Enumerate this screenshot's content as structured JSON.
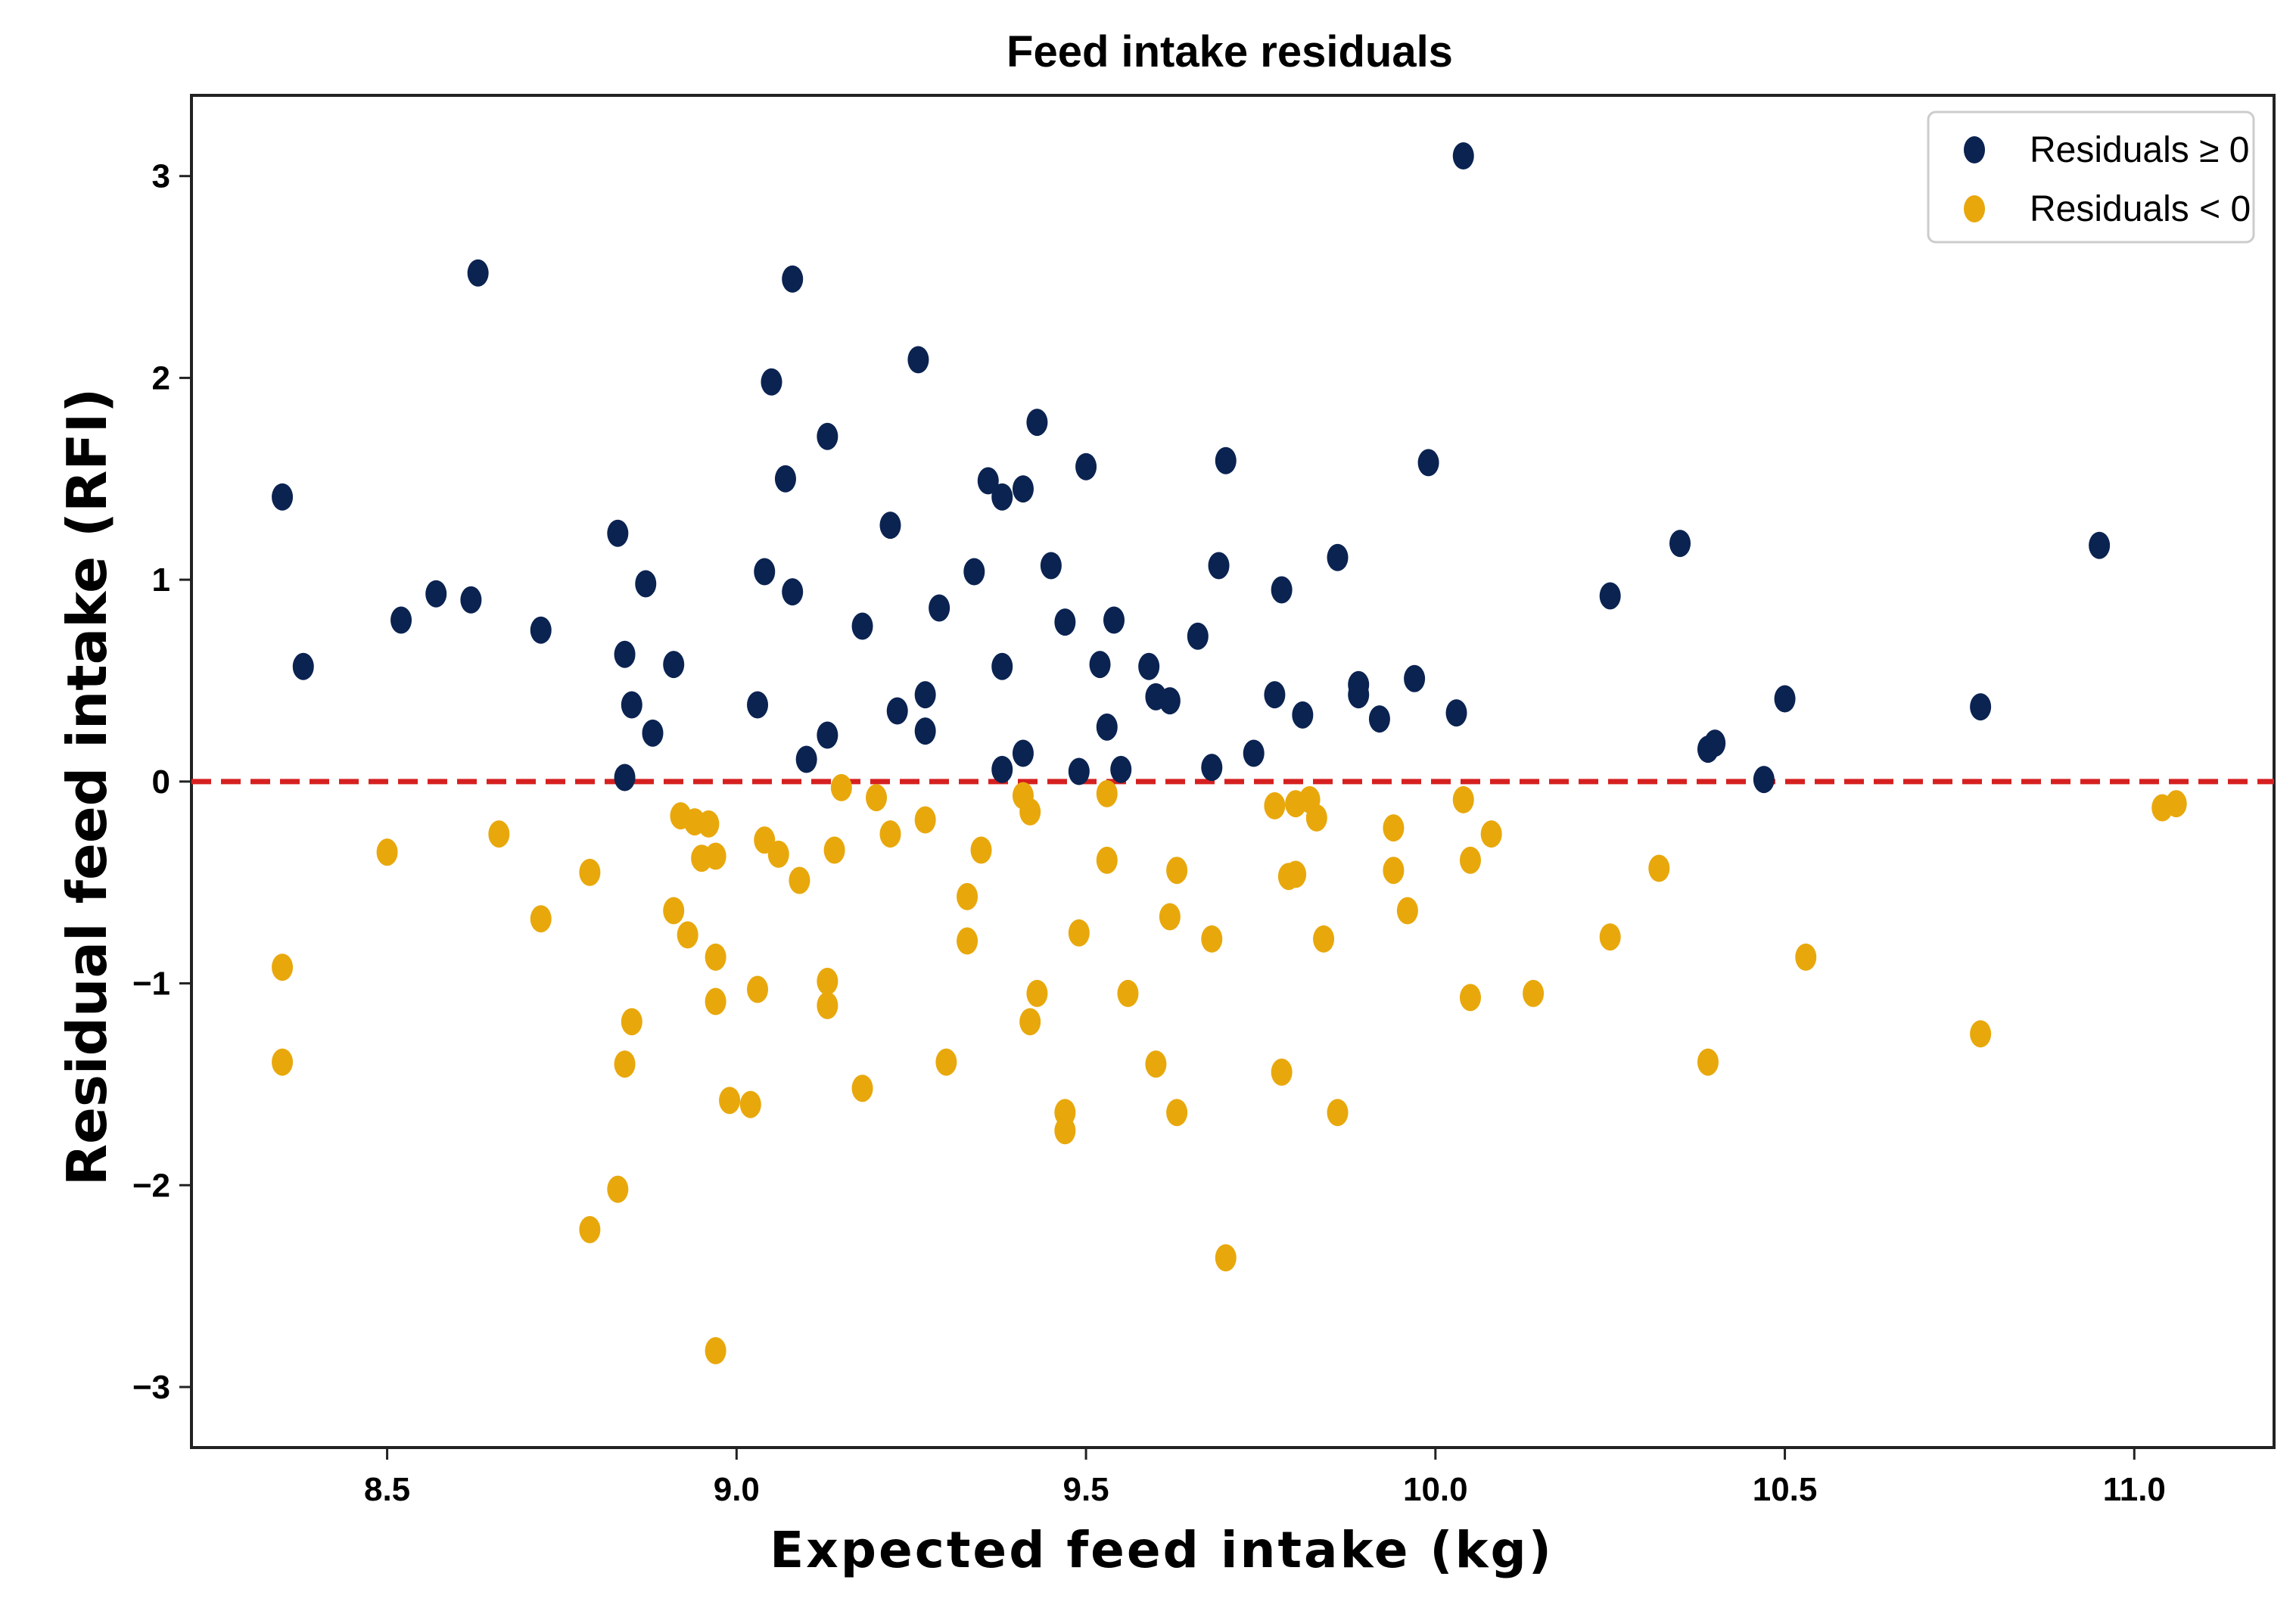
{
  "chart_data": {
    "type": "scatter",
    "title": "Feed intake residuals",
    "xlabel": "Expected feed intake (kg)",
    "ylabel": "Residual feed intake (RFI)",
    "xlim": [
      8.22,
      11.2
    ],
    "ylim": [
      -3.3,
      3.4
    ],
    "xticks": [
      8.5,
      9.0,
      9.5,
      10.0,
      10.5,
      11.0
    ],
    "xtick_labels": [
      "8.5",
      "9.0",
      "9.5",
      "10.0",
      "10.5",
      "11.0"
    ],
    "yticks": [
      -3,
      -2,
      -1,
      0,
      1,
      2,
      3
    ],
    "ytick_labels": [
      "−3",
      "−2",
      "−1",
      "0",
      "1",
      "2",
      "3"
    ],
    "grid": false,
    "legend_position": "top-right",
    "reference_line": {
      "y": 0,
      "style": "dashed",
      "color": "#d62020"
    },
    "series": [
      {
        "name": "Residuals ≥ 0",
        "color": "#0b2351",
        "points": [
          [
            8.35,
            1.41
          ],
          [
            8.38,
            0.57
          ],
          [
            8.52,
            0.8
          ],
          [
            8.57,
            0.93
          ],
          [
            8.62,
            0.9
          ],
          [
            8.63,
            2.52
          ],
          [
            8.72,
            0.75
          ],
          [
            8.83,
            1.23
          ],
          [
            8.84,
            0.63
          ],
          [
            8.85,
            0.38
          ],
          [
            8.84,
            0.02
          ],
          [
            8.87,
            0.98
          ],
          [
            8.88,
            0.24
          ],
          [
            8.91,
            0.58
          ],
          [
            9.03,
            0.38
          ],
          [
            9.04,
            1.04
          ],
          [
            9.05,
            1.98
          ],
          [
            9.07,
            1.5
          ],
          [
            9.08,
            0.94
          ],
          [
            9.08,
            2.49
          ],
          [
            9.1,
            0.11
          ],
          [
            9.13,
            1.71
          ],
          [
            9.13,
            0.23
          ],
          [
            9.18,
            0.77
          ],
          [
            9.22,
            1.27
          ],
          [
            9.23,
            0.35
          ],
          [
            9.26,
            2.09
          ],
          [
            9.27,
            0.25
          ],
          [
            9.27,
            0.43
          ],
          [
            9.29,
            0.86
          ],
          [
            9.34,
            1.04
          ],
          [
            9.36,
            1.49
          ],
          [
            9.38,
            1.41
          ],
          [
            9.38,
            0.57
          ],
          [
            9.38,
            0.06
          ],
          [
            9.41,
            1.45
          ],
          [
            9.41,
            0.14
          ],
          [
            9.43,
            1.78
          ],
          [
            9.45,
            1.07
          ],
          [
            9.47,
            0.79
          ],
          [
            9.49,
            0.05
          ],
          [
            9.5,
            1.56
          ],
          [
            9.52,
            0.58
          ],
          [
            9.53,
            0.27
          ],
          [
            9.54,
            0.8
          ],
          [
            9.55,
            0.06
          ],
          [
            9.59,
            0.57
          ],
          [
            9.6,
            0.42
          ],
          [
            9.62,
            0.4
          ],
          [
            9.66,
            0.72
          ],
          [
            9.68,
            0.07
          ],
          [
            9.69,
            1.07
          ],
          [
            9.7,
            1.59
          ],
          [
            9.74,
            0.14
          ],
          [
            9.77,
            0.43
          ],
          [
            9.78,
            0.95
          ],
          [
            9.81,
            0.33
          ],
          [
            9.86,
            1.11
          ],
          [
            9.89,
            0.48
          ],
          [
            9.89,
            0.43
          ],
          [
            9.92,
            0.31
          ],
          [
            9.97,
            0.51
          ],
          [
            9.99,
            1.58
          ],
          [
            10.03,
            0.34
          ],
          [
            10.04,
            3.1
          ],
          [
            10.25,
            0.92
          ],
          [
            10.35,
            1.18
          ],
          [
            10.39,
            0.16
          ],
          [
            10.4,
            0.19
          ],
          [
            10.47,
            0.01
          ],
          [
            10.5,
            0.41
          ],
          [
            10.78,
            0.37
          ],
          [
            10.95,
            1.17
          ]
        ]
      },
      {
        "name": "Residuals < 0",
        "color": "#e8a80c",
        "points": [
          [
            8.35,
            -0.92
          ],
          [
            8.35,
            -1.39
          ],
          [
            8.5,
            -0.35
          ],
          [
            8.66,
            -0.26
          ],
          [
            8.72,
            -0.68
          ],
          [
            8.79,
            -0.45
          ],
          [
            8.79,
            -2.22
          ],
          [
            8.83,
            -2.02
          ],
          [
            8.84,
            -1.4
          ],
          [
            8.85,
            -1.19
          ],
          [
            8.91,
            -0.64
          ],
          [
            8.92,
            -0.17
          ],
          [
            8.93,
            -0.76
          ],
          [
            8.94,
            -0.2
          ],
          [
            8.95,
            -0.38
          ],
          [
            8.96,
            -0.21
          ],
          [
            8.97,
            -0.37
          ],
          [
            8.97,
            -0.87
          ],
          [
            8.97,
            -1.09
          ],
          [
            8.97,
            -2.82
          ],
          [
            8.99,
            -1.58
          ],
          [
            9.02,
            -1.6
          ],
          [
            9.03,
            -1.03
          ],
          [
            9.04,
            -0.29
          ],
          [
            9.06,
            -0.36
          ],
          [
            9.09,
            -0.49
          ],
          [
            9.13,
            -0.99
          ],
          [
            9.13,
            -1.11
          ],
          [
            9.14,
            -0.34
          ],
          [
            9.15,
            -0.03
          ],
          [
            9.18,
            -1.52
          ],
          [
            9.2,
            -0.08
          ],
          [
            9.22,
            -0.26
          ],
          [
            9.27,
            -0.19
          ],
          [
            9.3,
            -1.39
          ],
          [
            9.33,
            -0.57
          ],
          [
            9.33,
            -0.79
          ],
          [
            9.35,
            -0.34
          ],
          [
            9.41,
            -0.07
          ],
          [
            9.42,
            -0.15
          ],
          [
            9.42,
            -1.19
          ],
          [
            9.43,
            -1.05
          ],
          [
            9.47,
            -1.64
          ],
          [
            9.47,
            -1.73
          ],
          [
            9.49,
            -0.75
          ],
          [
            9.53,
            -0.06
          ],
          [
            9.53,
            -0.39
          ],
          [
            9.56,
            -1.05
          ],
          [
            9.6,
            -1.4
          ],
          [
            9.63,
            -0.44
          ],
          [
            9.63,
            -1.64
          ],
          [
            9.62,
            -0.67
          ],
          [
            9.68,
            -0.78
          ],
          [
            9.7,
            -2.36
          ],
          [
            9.77,
            -0.12
          ],
          [
            9.78,
            -1.44
          ],
          [
            9.79,
            -0.47
          ],
          [
            9.8,
            -0.46
          ],
          [
            9.8,
            -0.11
          ],
          [
            9.82,
            -0.09
          ],
          [
            9.83,
            -0.18
          ],
          [
            9.84,
            -0.78
          ],
          [
            9.86,
            -1.64
          ],
          [
            9.94,
            -0.44
          ],
          [
            9.94,
            -0.23
          ],
          [
            9.96,
            -0.64
          ],
          [
            10.04,
            -0.09
          ],
          [
            10.05,
            -0.39
          ],
          [
            10.05,
            -1.07
          ],
          [
            10.08,
            -0.26
          ],
          [
            10.14,
            -1.05
          ],
          [
            10.25,
            -0.77
          ],
          [
            10.32,
            -0.43
          ],
          [
            10.39,
            -1.39
          ],
          [
            10.53,
            -0.87
          ],
          [
            10.78,
            -1.25
          ],
          [
            11.04,
            -0.13
          ],
          [
            11.06,
            -0.11
          ]
        ]
      }
    ]
  }
}
